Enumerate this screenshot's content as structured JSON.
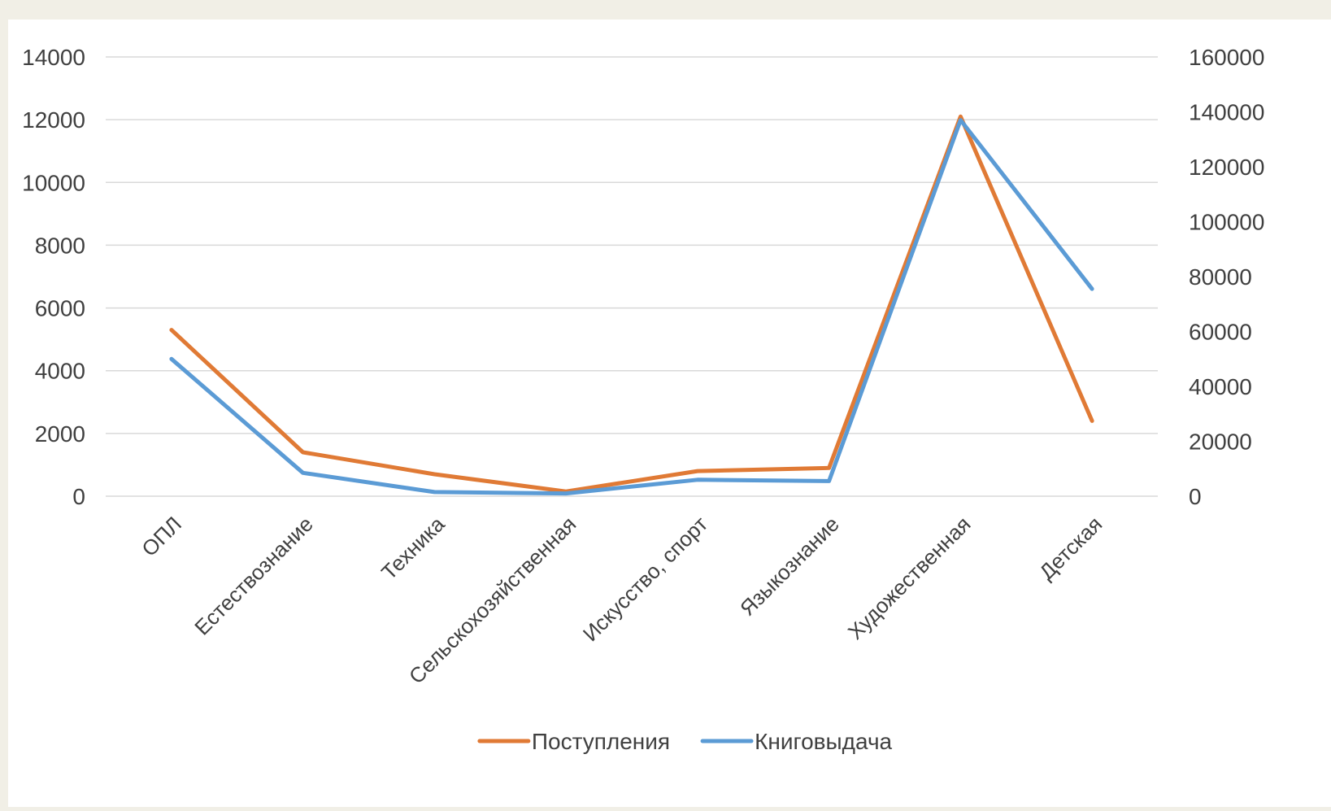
{
  "chart_data": {
    "type": "line",
    "title": "",
    "xlabel": "",
    "ylabel": "",
    "categories": [
      "ОПЛ",
      "Естествознание",
      "Техника",
      "Сельскохозяйственная",
      "Искусство, спорт",
      "Языкознание",
      "Художественная",
      "Детская"
    ],
    "y_left": {
      "ylim": [
        0,
        14000
      ],
      "ticks": [
        0,
        2000,
        4000,
        6000,
        8000,
        10000,
        12000,
        14000
      ],
      "tick_labels": [
        "0",
        "2000",
        "4000",
        "6000",
        "8000",
        "10000",
        "12000",
        "14000"
      ]
    },
    "y_right": {
      "ylim": [
        0,
        160000
      ],
      "ticks": [
        0,
        20000,
        40000,
        60000,
        80000,
        100000,
        120000,
        140000,
        160000
      ],
      "tick_labels": [
        "0",
        "20000",
        "40000",
        "60000",
        "80000",
        "100000",
        "120000",
        "140000",
        "160000"
      ]
    },
    "grid": true,
    "legend_position": "bottom",
    "series": [
      {
        "name": "Поступления",
        "axis": "left",
        "color": "#e07a35",
        "values": [
          5300,
          1400,
          700,
          150,
          800,
          900,
          12100,
          2400
        ]
      },
      {
        "name": "Книговыдача",
        "axis": "right",
        "color": "#5b9bd5",
        "values": [
          50000,
          8500,
          1500,
          1000,
          6000,
          5500,
          137000,
          75500
        ]
      }
    ]
  }
}
